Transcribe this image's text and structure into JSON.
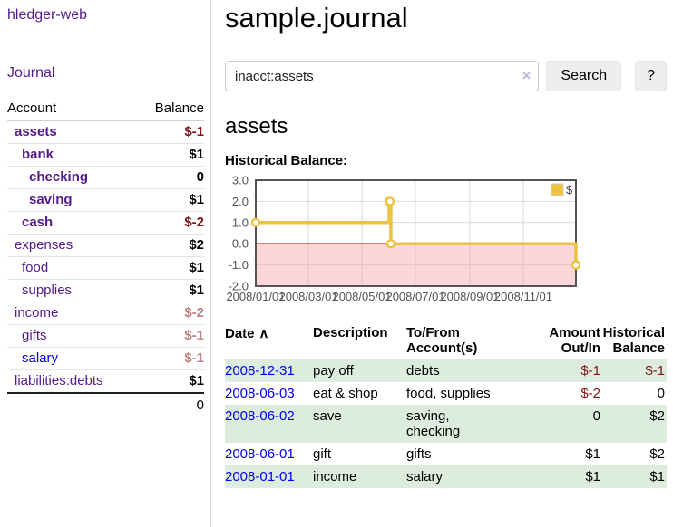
{
  "colors": {
    "link_visited_purple": "#551a8b",
    "link_blue": "#0000ee",
    "negative_strong": "#801515",
    "negative_muted": "#c08383",
    "row_stripe_green": "#dcedde",
    "chart_line_gold": "#edc240",
    "chart_negative_fill_pink": "#fbdada",
    "chart_zero_line_red": "#8b0000",
    "chart_border_gray": "#545454"
  },
  "icons": {
    "clear_search": "×",
    "sort_ascending": "∧"
  },
  "sidebar": {
    "brand": "hledger-web",
    "journal_link": "Journal",
    "accounts_table": {
      "headers": {
        "account": "Account",
        "balance": "Balance"
      },
      "rows": [
        {
          "account": "assets",
          "balance": "$-1",
          "depth": 1,
          "bold": true,
          "balance_style": "negative-strong"
        },
        {
          "account": "bank",
          "balance": "$1",
          "depth": 2,
          "bold": true,
          "balance_style": "plain"
        },
        {
          "account": "checking",
          "balance": "0",
          "depth": 3,
          "bold": true,
          "balance_style": "plain"
        },
        {
          "account": "saving",
          "balance": "$1",
          "depth": 3,
          "bold": true,
          "balance_style": "plain"
        },
        {
          "account": "cash",
          "balance": "$-2",
          "depth": 2,
          "bold": true,
          "balance_style": "negative-strong"
        },
        {
          "account": "expenses",
          "balance": "$2",
          "depth": 1,
          "bold": false,
          "balance_style": "plain"
        },
        {
          "account": "food",
          "balance": "$1",
          "depth": 2,
          "bold": false,
          "balance_style": "plain"
        },
        {
          "account": "supplies",
          "balance": "$1",
          "depth": 2,
          "bold": false,
          "balance_style": "plain"
        },
        {
          "account": "income",
          "balance": "$-2",
          "depth": 1,
          "bold": false,
          "balance_style": "negative-muted"
        },
        {
          "account": "gifts",
          "balance": "$-1",
          "depth": 2,
          "bold": false,
          "balance_style": "negative-muted"
        },
        {
          "account": "salary",
          "balance": "$-1",
          "depth": 2,
          "bold": false,
          "balance_style": "negative-muted",
          "link_style": "unvisited"
        },
        {
          "account": "liabilities:debts",
          "balance": "$1",
          "depth": 1,
          "bold": false,
          "balance_style": "plain"
        }
      ],
      "total": "0"
    }
  },
  "header": {
    "title": "sample.journal"
  },
  "search": {
    "value": "inacct:assets",
    "button_label": "Search",
    "help_label": "?"
  },
  "account_page": {
    "heading": "assets",
    "chart_title": "Historical Balance:"
  },
  "chart_data": {
    "type": "line",
    "step": true,
    "title": "Historical Balance",
    "x_range": [
      0,
      365
    ],
    "y_range": [
      -2,
      3
    ],
    "grid": true,
    "legend_position": "top-right",
    "series": [
      {
        "name": "$",
        "color": "#edc240",
        "points": [
          {
            "date": "2008-01-01",
            "day": 0,
            "value": 1
          },
          {
            "date": "2008-06-01",
            "day": 152,
            "value": 2
          },
          {
            "date": "2008-06-02",
            "day": 153,
            "value": 2
          },
          {
            "date": "2008-06-03",
            "day": 154,
            "value": 0
          },
          {
            "date": "2008-12-31",
            "day": 365,
            "value": -1
          }
        ]
      }
    ],
    "x_ticks": [
      {
        "day": 0,
        "label": "2008/01/01"
      },
      {
        "day": 60,
        "label": "2008/03/01"
      },
      {
        "day": 121,
        "label": "2008/05/01"
      },
      {
        "day": 182,
        "label": "2008/07/01"
      },
      {
        "day": 244,
        "label": "2008/09/01"
      },
      {
        "day": 305,
        "label": "2008/11/01"
      }
    ],
    "y_ticks": [
      -2,
      -1,
      0,
      1,
      2,
      3
    ],
    "negative_region": {
      "from": -2,
      "to": 0
    }
  },
  "register": {
    "headers": {
      "date": "Date",
      "description": "Description",
      "accounts": "To/From\nAccount(s)",
      "amount": "Amount\nOut/In",
      "balance": "Historical\nBalance"
    },
    "rows": [
      {
        "date": "2008-12-31",
        "description": "pay off",
        "accounts": "debts",
        "amount": "$-1",
        "amount_negative": true,
        "balance": "$-1",
        "balance_negative": true
      },
      {
        "date": "2008-06-03",
        "description": "eat & shop",
        "accounts": "food, supplies",
        "amount": "$-2",
        "amount_negative": true,
        "balance": "0",
        "balance_negative": false
      },
      {
        "date": "2008-06-02",
        "description": "save",
        "accounts": "saving, checking",
        "amount": "0",
        "amount_negative": false,
        "balance": "$2",
        "balance_negative": false
      },
      {
        "date": "2008-06-01",
        "description": "gift",
        "accounts": "gifts",
        "amount": "$1",
        "amount_negative": false,
        "balance": "$2",
        "balance_negative": false
      },
      {
        "date": "2008-01-01",
        "description": "income",
        "accounts": "salary",
        "amount": "$1",
        "amount_negative": false,
        "balance": "$1",
        "balance_negative": false
      }
    ]
  }
}
